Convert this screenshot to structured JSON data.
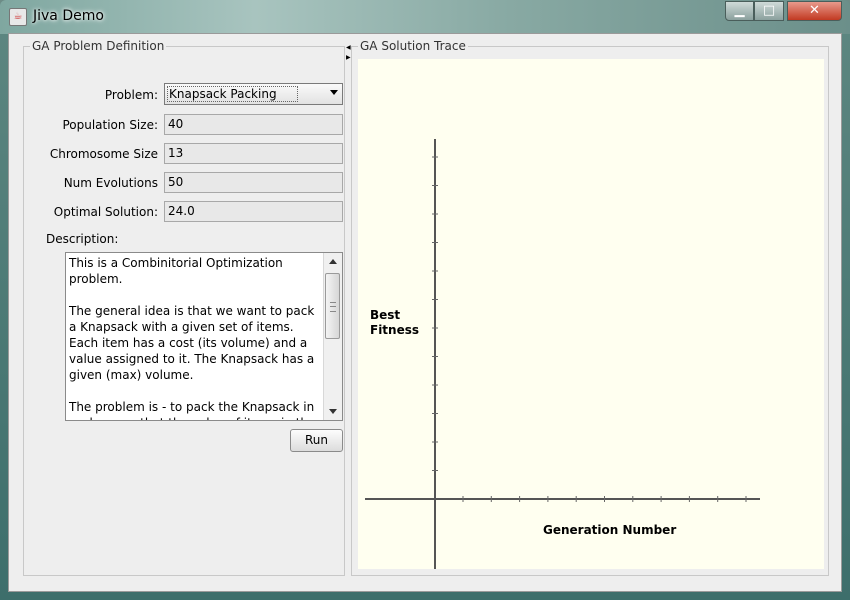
{
  "window": {
    "title": "Jiva Demo",
    "controls": {
      "minimize": "▁",
      "maximize": "□",
      "close": "✕"
    }
  },
  "problem_panel": {
    "title": "GA Problem Definition",
    "problem": {
      "label": "Problem:",
      "value": "Knapsack Packing"
    },
    "population_size": {
      "label": "Population Size:",
      "value": "40"
    },
    "chromosome_size": {
      "label": "Chromosome Size",
      "value": "13"
    },
    "num_evolutions": {
      "label": "Num Evolutions",
      "value": "50"
    },
    "optimal_solution": {
      "label": "Optimal Solution:",
      "value": "24.0"
    },
    "description_label": "Description:",
    "description_text": "This is a Combinitorial Optimization problem.\n\nThe general idea is that we want to pack a Knapsack with a given set of items. Each item has a cost (its volume) and a value assigned to it. The Knapsack has a  given (max) volume.\n\nThe problem is - to pack the Knapsack in such a way that the value of items in the",
    "run_label": "Run"
  },
  "trace_panel": {
    "title": "GA Solution Trace",
    "chart": {
      "y_label_line1": "Best",
      "y_label_line2": "Fitness",
      "x_label": "Generation Number"
    }
  },
  "chart_data": {
    "type": "line",
    "series": [],
    "x": [],
    "xlabel": "Generation Number",
    "ylabel": "Best Fitness",
    "grid": false
  }
}
